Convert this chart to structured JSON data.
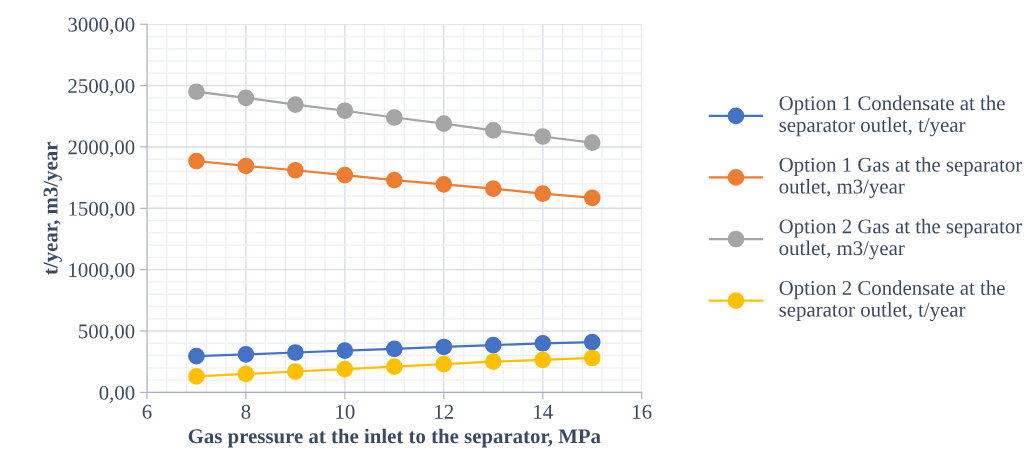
{
  "chart_data": {
    "type": "line",
    "xlabel": "Gas pressure at the inlet to the separator, MPa",
    "ylabel": "t/year, m3/year",
    "x": [
      7,
      8,
      9,
      10,
      11,
      12,
      13,
      14,
      15
    ],
    "series": [
      {
        "name": "Option 1 Condensate at the separator outlet, t/year",
        "color": "#4472c4",
        "values": [
          295,
          310,
          325,
          340,
          355,
          370,
          385,
          400,
          410
        ]
      },
      {
        "name": "Option 1 Gas at the separator outlet, m3/year",
        "color": "#ed7d31",
        "values": [
          1885,
          1845,
          1810,
          1770,
          1730,
          1695,
          1660,
          1620,
          1585
        ]
      },
      {
        "name": "Option 2 Gas at the separator outlet, m3/year",
        "color": "#a5a5a5",
        "values": [
          2450,
          2400,
          2345,
          2295,
          2240,
          2190,
          2135,
          2085,
          2035
        ]
      },
      {
        "name": "Option 2 Condensate at the separator outlet, t/year",
        "color": "#ffc000",
        "values": [
          130,
          150,
          170,
          190,
          210,
          230,
          250,
          265,
          280
        ]
      }
    ],
    "xlim": [
      6,
      16
    ],
    "xticks": [
      6,
      8,
      10,
      12,
      14,
      16
    ],
    "ylim": [
      0,
      3000
    ],
    "yticks": [
      {
        "value": 0,
        "label": "0,00"
      },
      {
        "value": 500,
        "label": "500,00"
      },
      {
        "value": 1000,
        "label": "1000,00"
      },
      {
        "value": 1500,
        "label": "1500,00"
      },
      {
        "value": 2000,
        "label": "2000,00"
      },
      {
        "value": 2500,
        "label": "2500,00"
      },
      {
        "value": 3000,
        "label": "3000,00"
      }
    ],
    "grid": true,
    "legend": "right",
    "marker": "circle",
    "line_style": "solid"
  }
}
